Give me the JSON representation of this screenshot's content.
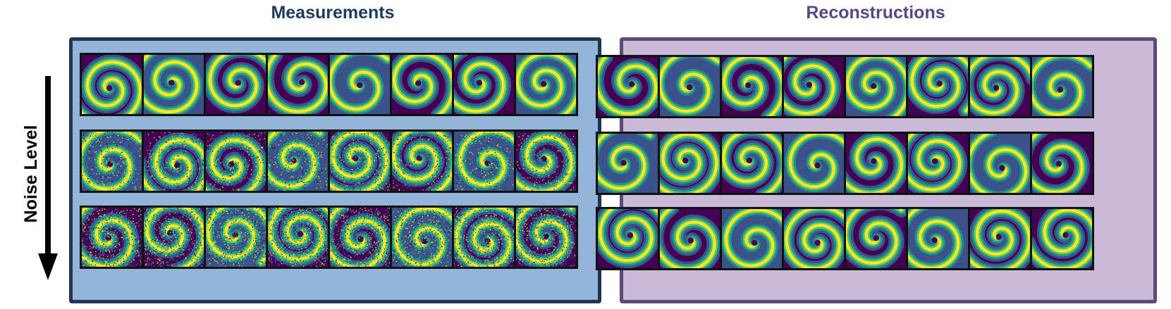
{
  "titles": {
    "measurements": "Measurements",
    "reconstructions": "Reconstructions"
  },
  "axis": {
    "label": "Noise Level",
    "direction": "down"
  },
  "colors": {
    "measurements_panel_bg": "#93b4d8",
    "measurements_panel_border": "#1f3552",
    "reconstructions_panel_bg": "#c9bad8",
    "reconstructions_panel_border": "#5c4a7a",
    "colormap": [
      "#440154",
      "#3b528b",
      "#21918c",
      "#5ec962",
      "#fde725"
    ]
  },
  "grid": {
    "rows": 3,
    "tiles_per_row": 8,
    "content": "spiral-wave fields (viridis colormap)",
    "measurement_noise": [
      0.0,
      0.45,
      0.8
    ],
    "reconstruction_noise": [
      0.0,
      0.0,
      0.0
    ]
  }
}
